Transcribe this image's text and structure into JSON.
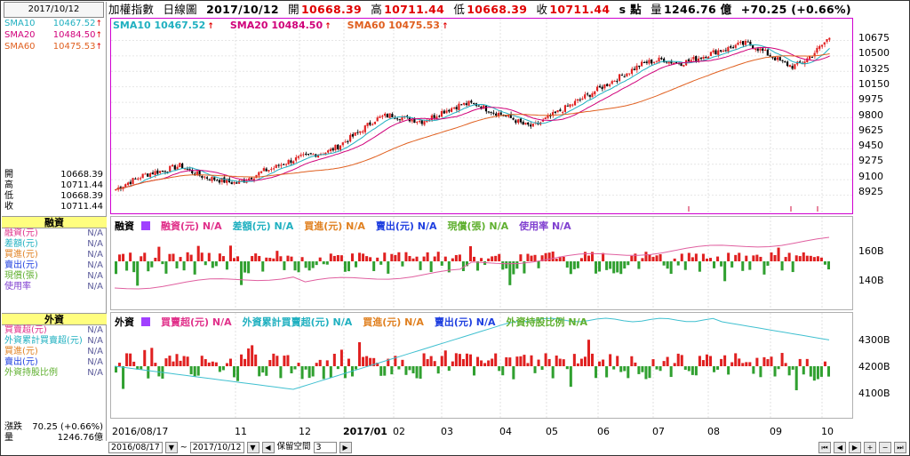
{
  "left_panel": {
    "date": "2017/10/12",
    "sma": [
      {
        "label": "SMA10",
        "value": "10467.52",
        "color": "#20b0c0"
      },
      {
        "label": "SMA20",
        "value": "10484.50",
        "color": "#d0007a"
      },
      {
        "label": "SMA60",
        "value": "10475.53",
        "color": "#e06020"
      }
    ],
    "quote": [
      {
        "label": "開",
        "value": "10668.39"
      },
      {
        "label": "高",
        "value": "10711.44"
      },
      {
        "label": "低",
        "value": "10668.39"
      },
      {
        "label": "收",
        "value": "10711.44"
      }
    ],
    "margin_title": "融資",
    "margin_items": [
      {
        "label": "融資(元)",
        "value": "N/A",
        "color": "#e0308a"
      },
      {
        "label": "差額(元)",
        "value": "N/A",
        "color": "#20b0c0"
      },
      {
        "label": "買進(元)",
        "value": "N/A",
        "color": "#e08020"
      },
      {
        "label": "賣出(元)",
        "value": "N/A",
        "color": "#2040e0"
      },
      {
        "label": "現償(張)",
        "value": "N/A",
        "color": "#60b030"
      },
      {
        "label": "使用率",
        "value": "N/A",
        "color": "#8040d0"
      }
    ],
    "foreign_title": "外資",
    "foreign_items": [
      {
        "label": "買賣超(元)",
        "value": "N/A",
        "color": "#e0308a"
      },
      {
        "label": "外資累計買賣超(元)",
        "value": "N/A",
        "color": "#20b0c0"
      },
      {
        "label": "買進(元)",
        "value": "N/A",
        "color": "#e08020"
      },
      {
        "label": "賣出(元)",
        "value": "N/A",
        "color": "#2040e0"
      },
      {
        "label": "外資持股比例",
        "value": "N/A",
        "color": "#60b030"
      }
    ],
    "change": {
      "label": "漲跌",
      "value": "70.25 (+0.66%)"
    },
    "volume": {
      "label": "量",
      "value": "1246.76億"
    }
  },
  "title": {
    "name": "加權指數",
    "period": "日線圖",
    "date": "2017/10/12",
    "open_label": "開",
    "open": "10668.39",
    "high_label": "高",
    "high": "10711.44",
    "low_label": "低",
    "low": "10668.39",
    "close_label": "收",
    "close": "10711.44",
    "unit": "s 點",
    "volume_label": "量",
    "volume": "1246.76 億",
    "change": "+70.25 (+0.66%)"
  },
  "main_legend": [
    {
      "text": "SMA10 10467.52",
      "color": "#20b0c0"
    },
    {
      "text": "SMA20 10484.50",
      "color": "#d0007a"
    },
    {
      "text": "SMA60 10475.53",
      "color": "#e06020"
    }
  ],
  "margin_legend": {
    "title": "融資",
    "items": [
      {
        "text": "融資(元) N/A",
        "color": "#e0308a"
      },
      {
        "text": "差額(元) N/A",
        "color": "#20b0c0"
      },
      {
        "text": "買進(元) N/A",
        "color": "#e08020"
      },
      {
        "text": "賣出(元) N/A",
        "color": "#2040e0"
      },
      {
        "text": "現償(張) N/A",
        "color": "#60b030"
      },
      {
        "text": "使用率 N/A",
        "color": "#8040d0"
      }
    ]
  },
  "foreign_legend": {
    "title": "外資",
    "items": [
      {
        "text": "買賣超(元) N/A",
        "color": "#e0308a"
      },
      {
        "text": "外資累計買賣超(元) N/A",
        "color": "#20b0c0"
      },
      {
        "text": "買進(元) N/A",
        "color": "#e08020"
      },
      {
        "text": "賣出(元) N/A",
        "color": "#2040e0"
      },
      {
        "text": "外資持股比例 N/A",
        "color": "#60b030"
      }
    ]
  },
  "y_axis_main": [
    "10675",
    "10500",
    "10325",
    "10150",
    "9975",
    "9800",
    "9625",
    "9450",
    "9275",
    "9100",
    "8925"
  ],
  "y_axis_margin": [
    "160B",
    "140B"
  ],
  "y_axis_foreign": [
    "4300B",
    "4200B",
    "4100B"
  ],
  "x_axis": [
    "2016/08/17",
    "11",
    "12",
    "2017/01",
    "02",
    "03",
    "04",
    "05",
    "06",
    "07",
    "08",
    "09",
    "10"
  ],
  "toolbar": {
    "start_date": "2016/08/17",
    "tilde": "~",
    "end_date": "2017/10/12",
    "keep_space_label": "保留空間",
    "keep_space_value": "3"
  },
  "colors": {
    "up": "#e02020",
    "down": "#000000",
    "bar_up": "#e02020",
    "bar_down": "#30a030",
    "accent": "#d000d0"
  },
  "chart_data": [
    {
      "type": "candlestick",
      "title": "加權指數 日線圖",
      "ylim": [
        8800,
        10780
      ],
      "x_range": [
        "2016/08/17",
        "2017/10/12"
      ],
      "close_trend": [
        8990,
        9050,
        9100,
        9150,
        9180,
        9200,
        9230,
        9260,
        9200,
        9150,
        9120,
        9100,
        9080,
        9060,
        9100,
        9150,
        9200,
        9230,
        9280,
        9320,
        9350,
        9380,
        9400,
        9420,
        9480,
        9550,
        9620,
        9700,
        9780,
        9820,
        9830,
        9800,
        9780,
        9760,
        9800,
        9860,
        9900,
        9940,
        9960,
        9950,
        9900,
        9860,
        9820,
        9780,
        9720,
        9700,
        9760,
        9820,
        9880,
        9940,
        10000,
        10060,
        10120,
        10180,
        10240,
        10300,
        10360,
        10420,
        10440,
        10460,
        10430,
        10420,
        10450,
        10480,
        10520,
        10560,
        10580,
        10620,
        10640,
        10600,
        10540,
        10480,
        10420,
        10380,
        10420,
        10500,
        10600,
        10711
      ],
      "sma": [
        {
          "name": "SMA10",
          "last": 10467.52
        },
        {
          "name": "SMA20",
          "last": 10484.5
        },
        {
          "name": "SMA60",
          "last": 10475.53
        }
      ]
    },
    {
      "type": "bar",
      "title": "融資",
      "ylim": [
        130,
        170
      ]
    },
    {
      "type": "bar",
      "title": "外資",
      "ylim": [
        4050,
        4400
      ]
    }
  ]
}
